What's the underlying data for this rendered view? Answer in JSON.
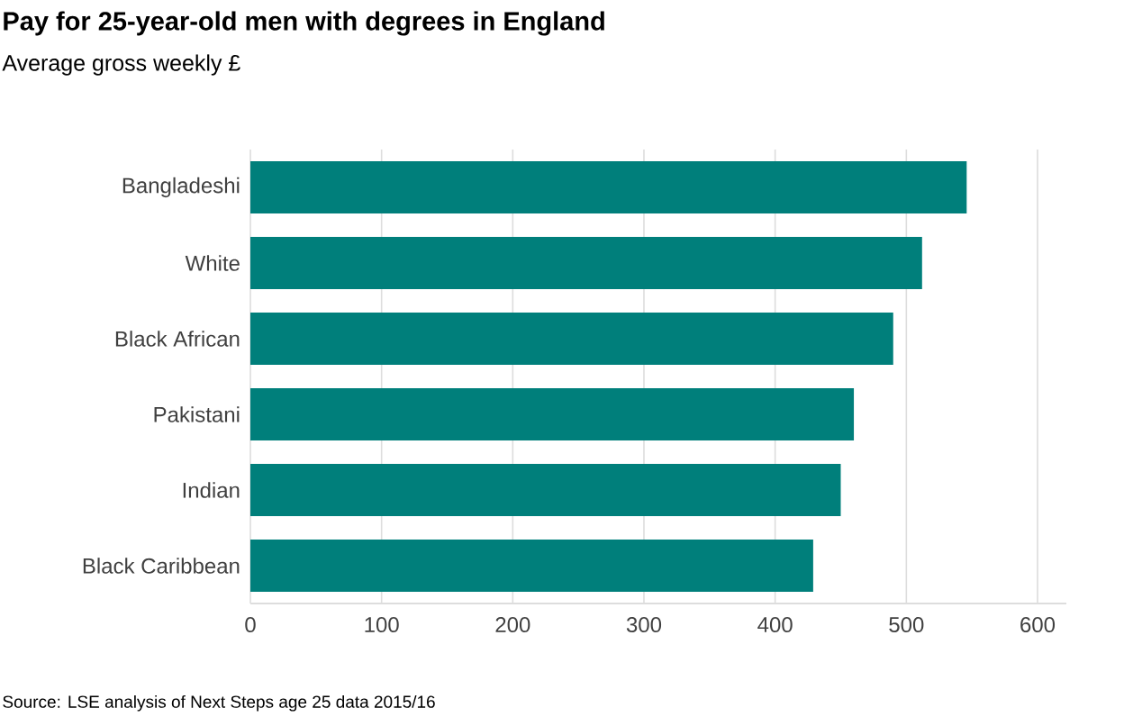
{
  "chart_data": {
    "type": "bar",
    "orientation": "horizontal",
    "title": "Pay for 25-year-old men with degrees in England",
    "subtitle": "Average gross weekly £",
    "categories": [
      "Bangladeshi",
      "White",
      "Black African",
      "Pakistani",
      "Indian",
      "Black Caribbean"
    ],
    "values": [
      546,
      512,
      490,
      460,
      450,
      429
    ],
    "color": "#007f7b",
    "xlim": [
      0,
      622
    ],
    "xticks": [
      0,
      100,
      200,
      300,
      400,
      500,
      600
    ],
    "grid": "x",
    "annotations": [
      "Source: LSE analysis of Next Steps age 25 data 2015/16"
    ]
  }
}
